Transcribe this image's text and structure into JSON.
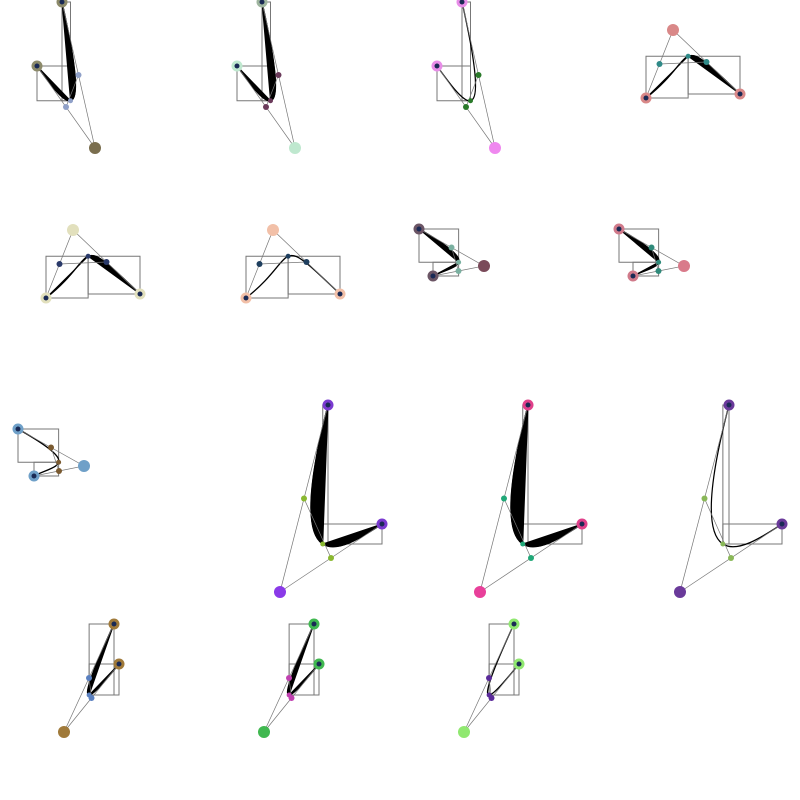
{
  "diagram": {
    "kind": "cubic-bezier-gallery",
    "panels": [
      {
        "id": "p1",
        "mode": "filled",
        "start": [
          62,
          2
        ],
        "c1": [
          95,
          148
        ],
        "c2": [
          60,
          98
        ],
        "end": [
          37,
          66
        ],
        "colors": {
          "start": "#8c8a6a",
          "c1": "#7a6e4e",
          "c2": "#8fa0c8",
          "end": "#8c8a6a"
        }
      },
      {
        "id": "p2",
        "mode": "filled",
        "start": [
          262,
          2
        ],
        "c1": [
          295,
          148
        ],
        "c2": [
          260,
          98
        ],
        "end": [
          237,
          66
        ],
        "colors": {
          "start": "#9fb59f",
          "c1": "#bfe8cf",
          "c2": "#6b3b5b",
          "end": "#bfe8cf"
        }
      },
      {
        "id": "p3",
        "mode": "stroke",
        "start": [
          462,
          2
        ],
        "c1": [
          495,
          148
        ],
        "c2": [
          460,
          98
        ],
        "end": [
          437,
          66
        ],
        "colors": {
          "start": "#e88de8",
          "c1": "#ef88ef",
          "c2": "#2a7a2a",
          "end": "#e88de8"
        }
      },
      {
        "id": "p4",
        "mode": "filled",
        "start": [
          740,
          94
        ],
        "c1": [
          673,
          30
        ],
        "c2": [
          700,
          56
        ],
        "end": [
          646,
          98
        ],
        "colors": {
          "start": "#d98888",
          "c1": "#d98888",
          "c2": "#2f8a88",
          "end": "#d98888"
        }
      },
      {
        "id": "p5",
        "mode": "filled",
        "start": [
          140,
          294
        ],
        "c1": [
          73,
          230
        ],
        "c2": [
          100,
          256
        ],
        "end": [
          46,
          298
        ],
        "colors": {
          "start": "#e2e0bd",
          "c1": "#e2e0bd",
          "c2": "#2a3a6a",
          "end": "#e2e0bd"
        }
      },
      {
        "id": "p6",
        "mode": "stroke",
        "start": [
          340,
          294
        ],
        "c1": [
          273,
          230
        ],
        "c2": [
          300,
          256
        ],
        "end": [
          246,
          298
        ],
        "colors": {
          "start": "#f2c0a8",
          "c1": "#f2c0a8",
          "c2": "#1f3f5f",
          "end": "#f2c0a8"
        }
      },
      {
        "id": "p7",
        "mode": "filled",
        "start": [
          419,
          229
        ],
        "c1": [
          484,
          266
        ],
        "c2": [
          455,
          265
        ],
        "end": [
          433,
          276
        ],
        "colors": {
          "start": "#6b5565",
          "c1": "#7a4a5a",
          "c2": "#7ab0a0",
          "end": "#6b5565"
        }
      },
      {
        "id": "p8",
        "mode": "filled",
        "start": [
          619,
          229
        ],
        "c1": [
          684,
          266
        ],
        "c2": [
          655,
          265
        ],
        "end": [
          633,
          276
        ],
        "colors": {
          "start": "#d07a8a",
          "c1": "#d97a8a",
          "c2": "#2f8a7a",
          "end": "#d07a8a"
        }
      },
      {
        "id": "p9",
        "mode": "stroke",
        "start": [
          18,
          429
        ],
        "c1": [
          84,
          466
        ],
        "c2": [
          55,
          465
        ],
        "end": [
          34,
          476
        ],
        "colors": {
          "start": "#6fa0c8",
          "c1": "#6fa0c8",
          "c2": "#7a5a30",
          "end": "#6fa0c8"
        }
      },
      {
        "id": "p10",
        "mode": "filled",
        "start": [
          328,
          405
        ],
        "c1": [
          280,
          592
        ],
        "c2": [
          344,
          549
        ],
        "end": [
          382,
          524
        ],
        "colors": {
          "start": "#7a3ad0",
          "c1": "#8a3ae8",
          "c2": "#8ab830",
          "end": "#7a3ad0"
        }
      },
      {
        "id": "p11",
        "mode": "filled",
        "start": [
          528,
          405
        ],
        "c1": [
          480,
          592
        ],
        "c2": [
          544,
          549
        ],
        "end": [
          582,
          524
        ],
        "colors": {
          "start": "#e0408a",
          "c1": "#e8409a",
          "c2": "#20a878",
          "end": "#e0408a"
        }
      },
      {
        "id": "p12",
        "mode": "stroke",
        "start": [
          729,
          405
        ],
        "c1": [
          680,
          592
        ],
        "c2": [
          744,
          549
        ],
        "end": [
          782,
          524
        ],
        "colors": {
          "start": "#6a3a9a",
          "c1": "#6a3a9a",
          "c2": "#8ab858",
          "end": "#6a3a9a"
        }
      },
      {
        "id": "p13",
        "mode": "filled",
        "start": [
          114,
          624
        ],
        "c1": [
          64,
          732
        ],
        "c2": [
          96,
          692
        ],
        "end": [
          119,
          664
        ],
        "colors": {
          "start": "#a07a3a",
          "c1": "#a07a3a",
          "c2": "#5a80c0",
          "end": "#a07a3a"
        }
      },
      {
        "id": "p14",
        "mode": "filled",
        "start": [
          314,
          624
        ],
        "c1": [
          264,
          732
        ],
        "c2": [
          296,
          692
        ],
        "end": [
          319,
          664
        ],
        "colors": {
          "start": "#40b850",
          "c1": "#40b850",
          "c2": "#c040b0",
          "end": "#40b850"
        }
      },
      {
        "id": "p15",
        "mode": "stroke",
        "start": [
          514,
          624
        ],
        "c1": [
          464,
          732
        ],
        "c2": [
          496,
          692
        ],
        "end": [
          519,
          664
        ],
        "colors": {
          "start": "#90e870",
          "c1": "#90e870",
          "c2": "#5a2a9a",
          "end": "#90e870"
        }
      }
    ]
  }
}
